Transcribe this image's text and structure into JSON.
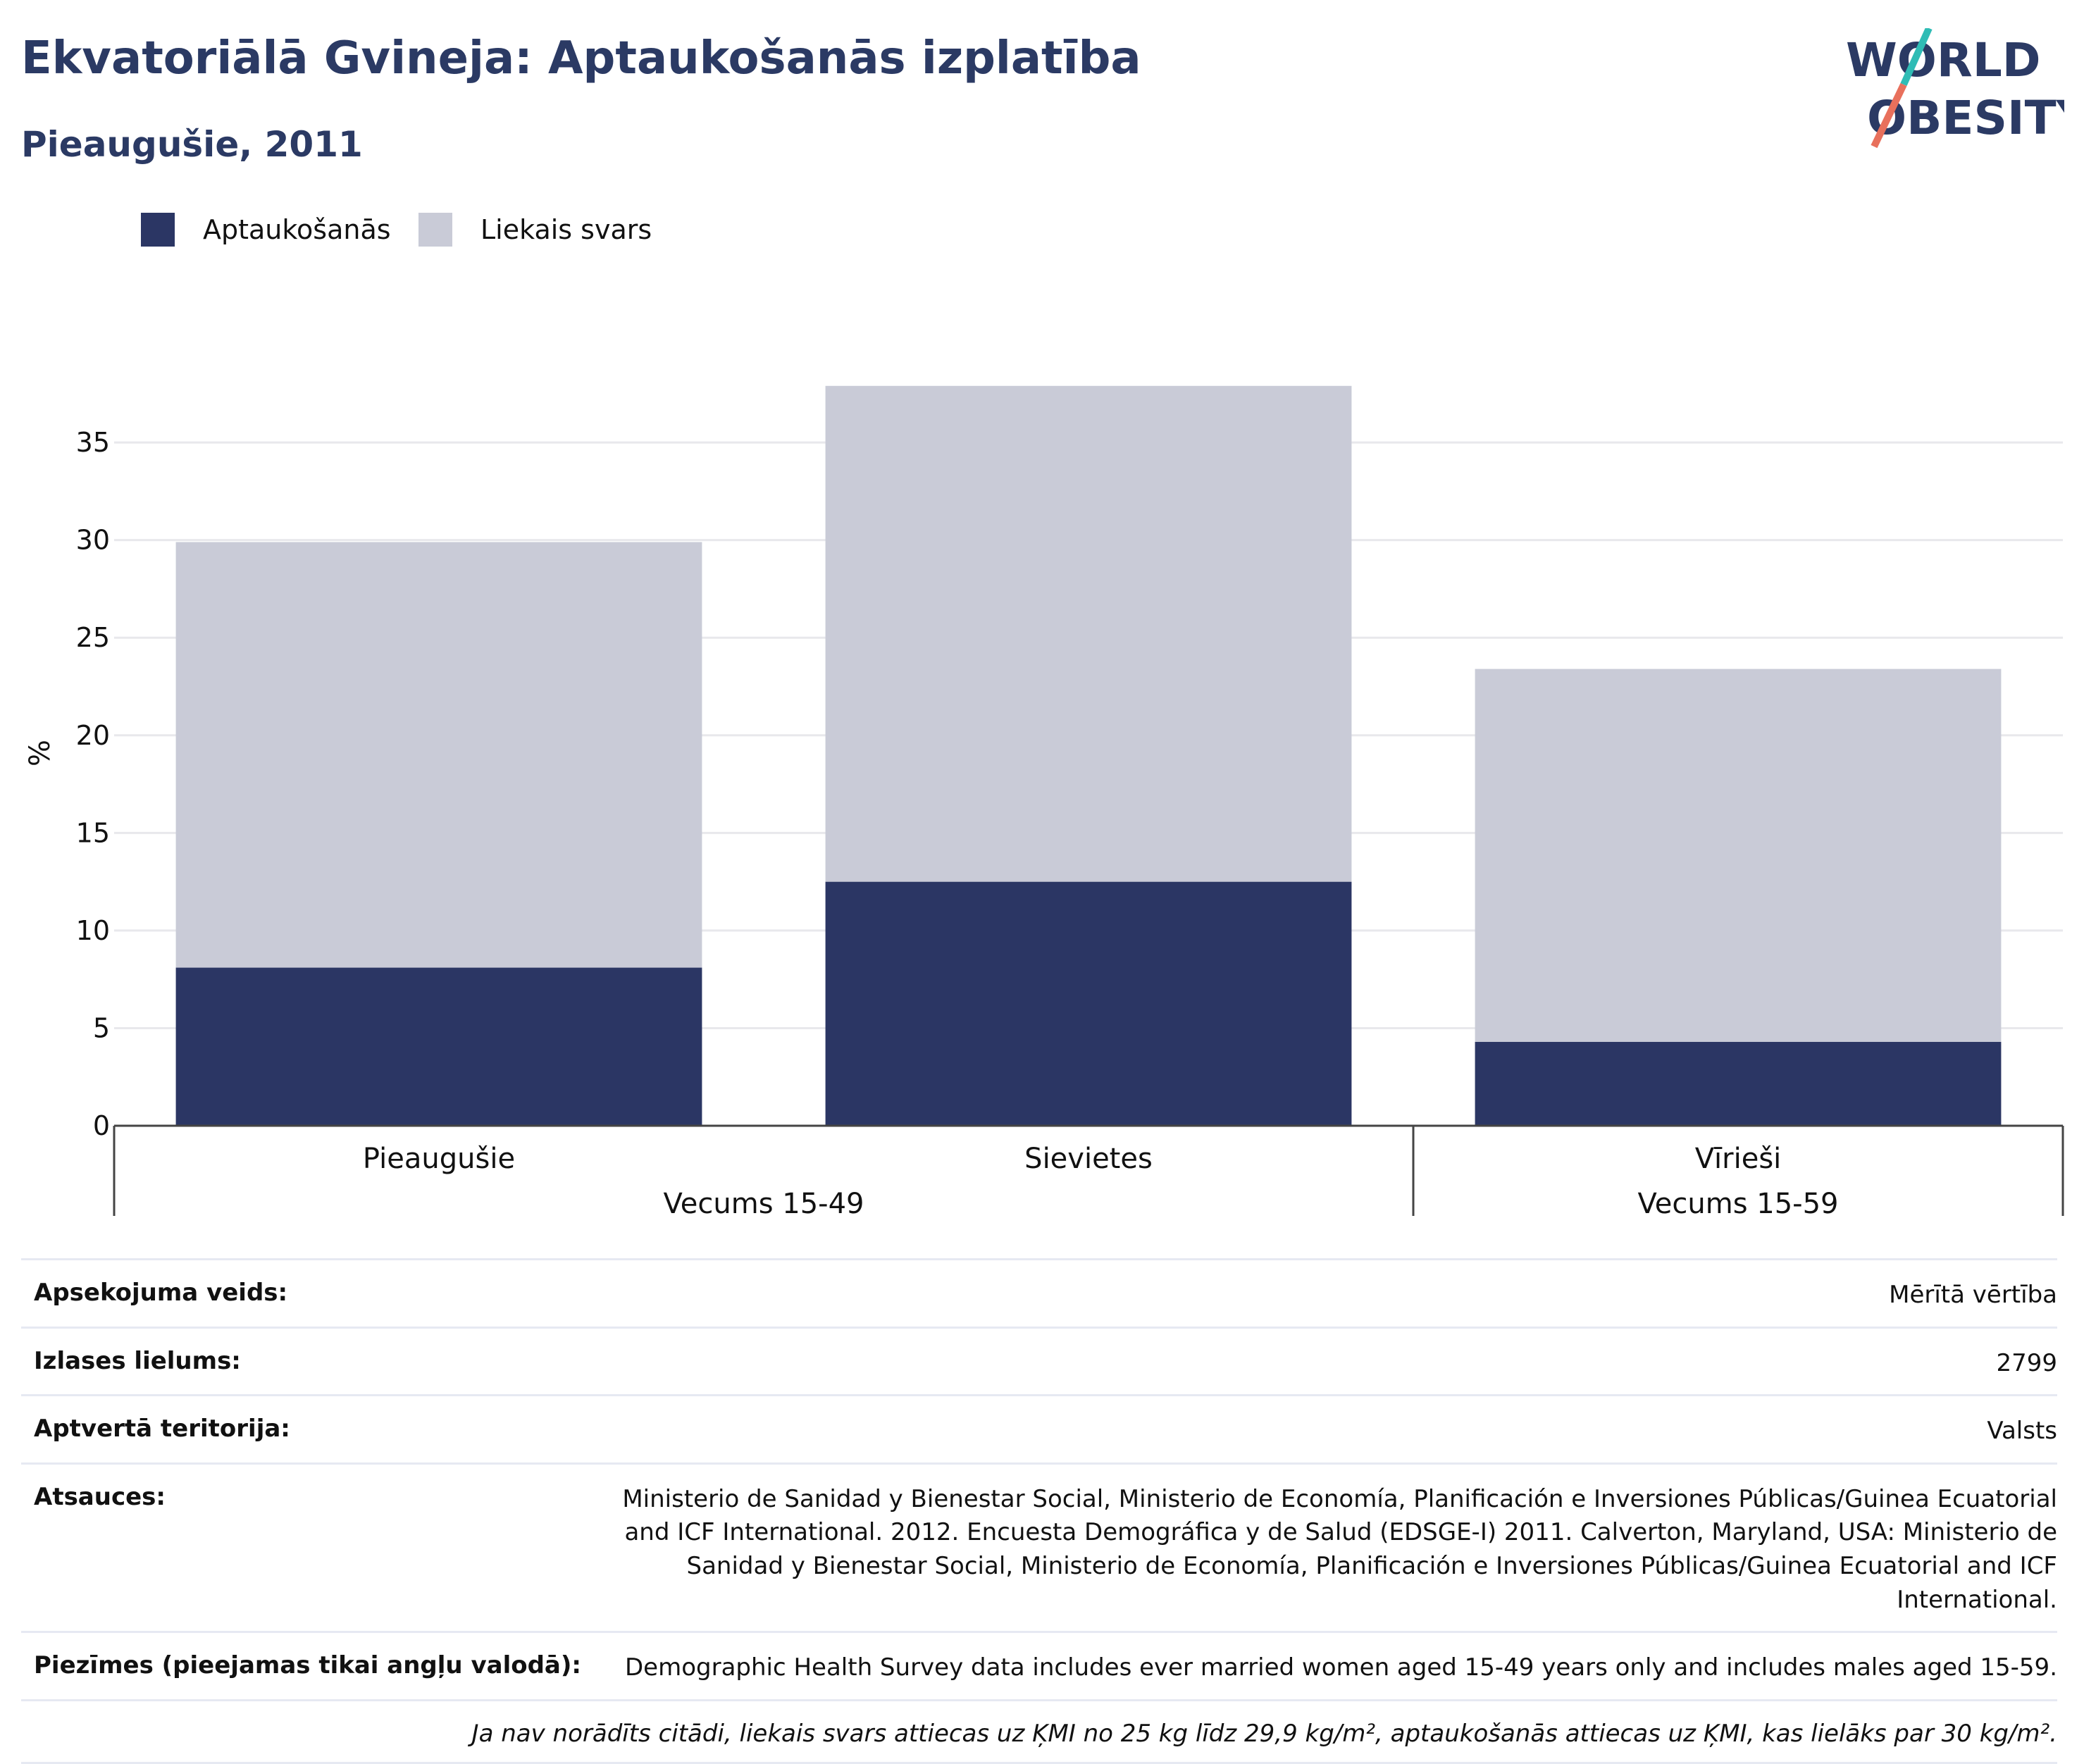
{
  "header": {
    "title": "Ekvatoriālā Gvineja: Aptaukošanās izplatība",
    "subtitle": "Pieaugušie, 2011"
  },
  "logo": {
    "line1": "WORLD",
    "line2": "OBESITY"
  },
  "legend": [
    {
      "label": "Aptaukošanās",
      "color": "#2b3664"
    },
    {
      "label": "Liekais svars",
      "color": "#c9cbd7"
    }
  ],
  "chart_data": {
    "type": "bar",
    "stacked": true,
    "categories": [
      "Pieaugušie",
      "Sievietes",
      "Vīrieši"
    ],
    "groups": [
      {
        "label": "Vecums 15-49",
        "categories": [
          "Pieaugušie",
          "Sievietes"
        ]
      },
      {
        "label": "Vecums 15-59",
        "categories": [
          "Vīrieši"
        ]
      }
    ],
    "series": [
      {
        "name": "Aptaukošanās",
        "values": [
          8.1,
          12.5,
          4.3
        ],
        "color": "#2b3664"
      },
      {
        "name": "Liekais svars",
        "values": [
          21.8,
          25.4,
          19.1
        ],
        "color": "#c9cbd7"
      }
    ],
    "ylabel": "%",
    "ylim": [
      0,
      38
    ],
    "yticks": [
      0,
      5,
      10,
      15,
      20,
      25,
      30,
      35
    ],
    "grid": true,
    "legend_position": "top-left"
  },
  "info": {
    "rows": [
      {
        "label": "Apsekojuma veids:",
        "value": "Mērītā vērtība"
      },
      {
        "label": "Izlases lielums:",
        "value": "2799"
      },
      {
        "label": "Aptvertā teritorija:",
        "value": "Valsts"
      },
      {
        "label": "Atsauces:",
        "value": "Ministerio de Sanidad y Bienestar Social, Ministerio de Economía, Planificación e Inversiones Públicas/Guinea Ecuatorial and ICF International. 2012. Encuesta Demográfica y de Salud (EDSGE-I) 2011. Calverton, Maryland, USA: Ministerio de Sanidad y Bienestar Social, Ministerio de Economía, Planificación e Inversiones Públicas/Guinea Ecuatorial and ICF International."
      },
      {
        "label": "Piezīmes (pieejamas tikai angļu valodā):",
        "value": "Demographic Health Survey data includes ever married women aged 15-49 years only and includes males aged 15-59."
      }
    ],
    "note": "Ja nav norādīts citādi, liekais svars attiecas uz ĶMI no 25 kg līdz 29,9 kg/m², aptaukošanās attiecas uz ĶMI, kas lielāks par 30 kg/m²."
  }
}
